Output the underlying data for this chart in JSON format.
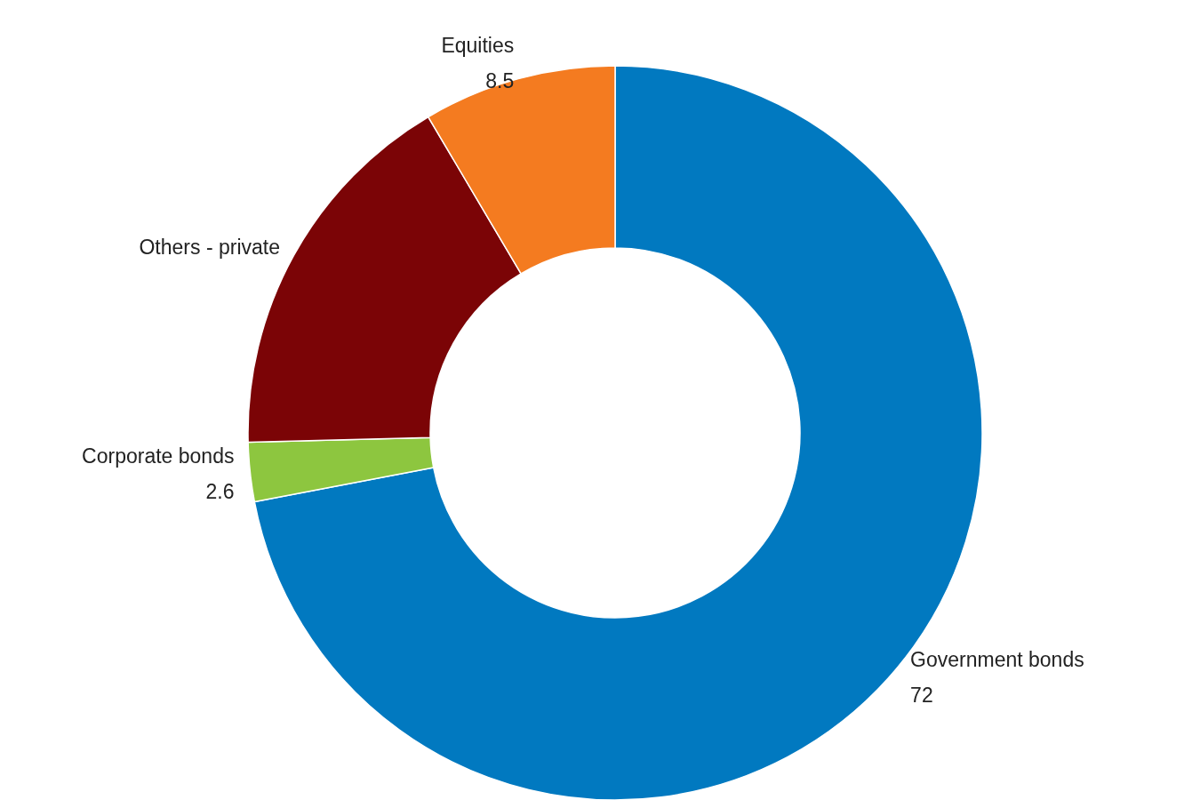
{
  "chart_data": {
    "type": "donut",
    "categories": [
      "Government bonds",
      "Corporate bonds",
      "Others - private",
      "Equities"
    ],
    "values": [
      72,
      2.6,
      16.9,
      8.5
    ],
    "value_labels": [
      "72",
      "2.6",
      null,
      "8.5"
    ],
    "colors": [
      "#0179c0",
      "#8dc63f",
      "#7b0406",
      "#f47b20"
    ],
    "legend": false
  }
}
